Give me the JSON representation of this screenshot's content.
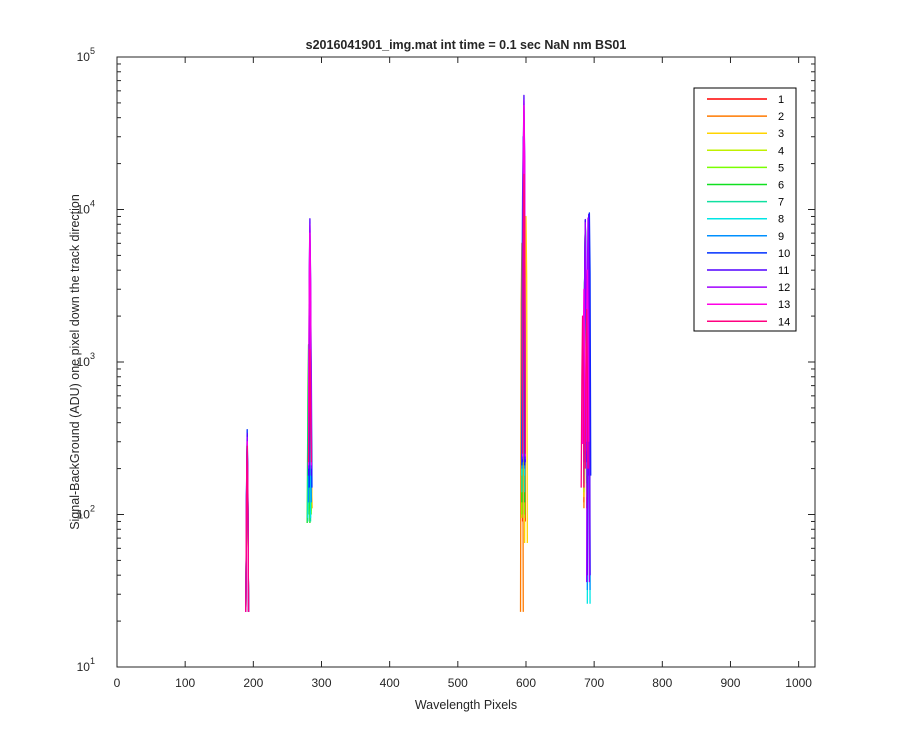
{
  "chart_data": {
    "type": "line",
    "title": "s2016041901_img.mat int time = 0.1 sec  NaN nm BS01",
    "xlabel": "Wavelength Pixels",
    "ylabel": "Signal-BackGround (ADU) one pixel down the track direction",
    "xlim": [
      0,
      1024
    ],
    "ylim": [
      10,
      100000
    ],
    "yscale": "log",
    "xticks": [
      "0",
      "100",
      "200",
      "300",
      "400",
      "500",
      "600",
      "700",
      "800",
      "900",
      "1000"
    ],
    "yticks": [
      {
        "base": "10",
        "exp": "1"
      },
      {
        "base": "10",
        "exp": "2"
      },
      {
        "base": "10",
        "exp": "3"
      },
      {
        "base": "10",
        "exp": "4"
      },
      {
        "base": "10",
        "exp": "5"
      }
    ],
    "grid": false,
    "legend_position": "top-right",
    "series": [
      {
        "name": "1",
        "color": "#ff0000",
        "peaks": [
          [
            191,
            23,
            300
          ],
          [
            284,
            110,
            1100
          ],
          [
            597,
            90,
            16000
          ],
          [
            687,
            120,
            8000
          ],
          [
            691,
            130,
            2000
          ]
        ]
      },
      {
        "name": "2",
        "color": "#ff7a00",
        "peaks": [
          [
            191,
            23,
            260
          ],
          [
            284,
            110,
            900
          ],
          [
            594,
            23,
            6000
          ],
          [
            687,
            110,
            8200
          ],
          [
            691,
            120,
            2100
          ]
        ]
      },
      {
        "name": "3",
        "color": "#ffd400",
        "peaks": [
          [
            191,
            23,
            270
          ],
          [
            284,
            110,
            950
          ],
          [
            600,
            65,
            9000
          ],
          [
            687,
            130,
            8200
          ],
          [
            691,
            140,
            2200
          ]
        ]
      },
      {
        "name": "4",
        "color": "#c0f000",
        "peaks": [
          [
            191,
            23,
            280
          ],
          [
            283,
            105,
            1000
          ],
          [
            596,
            95,
            11000
          ],
          [
            687,
            140,
            8300
          ],
          [
            691,
            150,
            2300
          ]
        ]
      },
      {
        "name": "5",
        "color": "#7aff00",
        "peaks": [
          [
            191,
            23,
            285
          ],
          [
            283,
            100,
            1200
          ],
          [
            596,
            100,
            13000
          ],
          [
            687,
            150,
            8300
          ],
          [
            691,
            160,
            2400
          ]
        ]
      },
      {
        "name": "6",
        "color": "#10e020",
        "peaks": [
          [
            191,
            23,
            290
          ],
          [
            281,
            88,
            1300
          ],
          [
            596,
            120,
            15000
          ],
          [
            687,
            160,
            8300
          ],
          [
            691,
            170,
            2500
          ]
        ]
      },
      {
        "name": "7",
        "color": "#10e0a0",
        "peaks": [
          [
            191,
            23,
            295
          ],
          [
            282,
            90,
            1400
          ],
          [
            596,
            140,
            17000
          ],
          [
            687,
            180,
            8400
          ],
          [
            691,
            180,
            2600
          ]
        ]
      },
      {
        "name": "8",
        "color": "#00e5e5",
        "peaks": [
          [
            191,
            23,
            300
          ],
          [
            282,
            95,
            1500
          ],
          [
            596,
            180,
            20000
          ],
          [
            687,
            200,
            8400
          ],
          [
            692,
            26,
            2700
          ]
        ]
      },
      {
        "name": "9",
        "color": "#0090ff",
        "peaks": [
          [
            191,
            23,
            310
          ],
          [
            283,
            120,
            2000
          ],
          [
            596,
            200,
            25000
          ],
          [
            687,
            220,
            8400
          ],
          [
            692,
            32,
            3000
          ]
        ]
      },
      {
        "name": "10",
        "color": "#0030ff",
        "peaks": [
          [
            191,
            23,
            360
          ],
          [
            284,
            150,
            2500
          ],
          [
            596,
            210,
            30000
          ],
          [
            687,
            220,
            8500
          ],
          [
            693,
            180,
            9500
          ]
        ]
      },
      {
        "name": "11",
        "color": "#5000ff",
        "peaks": [
          [
            191,
            23,
            340
          ],
          [
            283,
            180,
            8700
          ],
          [
            597,
            220,
            56000
          ],
          [
            687,
            250,
            8600
          ],
          [
            692,
            40,
            9300
          ]
        ]
      },
      {
        "name": "12",
        "color": "#a000ff",
        "peaks": [
          [
            191,
            23,
            320
          ],
          [
            283,
            200,
            8000
          ],
          [
            597,
            230,
            52000
          ],
          [
            687,
            260,
            8200
          ],
          [
            691,
            36,
            8800
          ]
        ]
      },
      {
        "name": "13",
        "color": "#ff00e6",
        "peaks": [
          [
            191,
            23,
            300
          ],
          [
            283,
            210,
            7000
          ],
          [
            597,
            240,
            48000
          ],
          [
            685,
            290,
            3000
          ],
          [
            690,
            300,
            4000
          ]
        ]
      },
      {
        "name": "14",
        "color": "#ff0080",
        "peaks": [
          [
            191,
            23,
            280
          ],
          [
            283,
            220,
            1200
          ],
          [
            597,
            250,
            17000
          ],
          [
            683,
            150,
            2000
          ],
          [
            689,
            200,
            2200
          ]
        ]
      }
    ]
  }
}
